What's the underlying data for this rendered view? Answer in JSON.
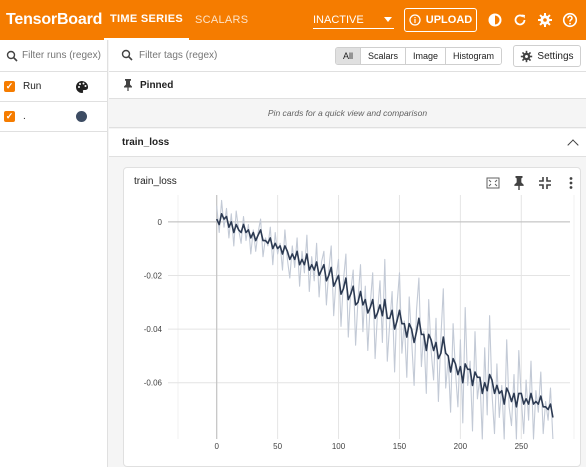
{
  "app": {
    "title": "TensorBoard"
  },
  "tabs": [
    {
      "label": "TIME SERIES",
      "active": true
    },
    {
      "label": "SCALARS",
      "active": false
    }
  ],
  "run_select": {
    "value": "INACTIVE"
  },
  "upload": {
    "label": "UPLOAD"
  },
  "top_icons": [
    "theme-icon",
    "refresh-icon",
    "settings-gear-icon",
    "help-icon"
  ],
  "sidebar": {
    "filter_placeholder": "Filter runs (regex)",
    "runs": [
      {
        "label": "Run",
        "checked": true,
        "icon": "palette-icon"
      },
      {
        "label": ".",
        "checked": true,
        "color": "#3d4c63"
      }
    ]
  },
  "toolbar": {
    "tag_filter_placeholder": "Filter tags (regex)",
    "segments": [
      "All",
      "Scalars",
      "Image",
      "Histogram"
    ],
    "selected_segment": "All",
    "settings_label": "Settings"
  },
  "pinned": {
    "title": "Pinned",
    "empty_message": "Pin cards for a quick view and comparison"
  },
  "group": {
    "title": "train_loss"
  },
  "card": {
    "title": "train_loss"
  },
  "colors": {
    "accent": "#f57c00",
    "series_main": "#2c3a52",
    "series_raw": "#c3cad6"
  },
  "chart_data": {
    "type": "line",
    "title": "train_loss",
    "xlim": [
      -40,
      290
    ],
    "ylim": [
      -0.081,
      0.01
    ],
    "x_ticks": [
      0,
      50,
      100,
      150,
      200,
      250
    ],
    "y_ticks": [
      0,
      -0.02,
      -0.04,
      -0.06
    ],
    "y_tick_labels": [
      "0",
      "-0.02",
      "-0.04",
      "-0.06"
    ],
    "grid": true,
    "series": [
      {
        "role": "raw",
        "x": [
          0,
          2,
          4,
          6,
          8,
          10,
          12,
          14,
          16,
          18,
          20,
          22,
          24,
          26,
          28,
          30,
          32,
          34,
          36,
          38,
          40,
          42,
          44,
          46,
          48,
          50,
          52,
          54,
          56,
          58,
          60,
          62,
          64,
          66,
          68,
          70,
          72,
          74,
          76,
          78,
          80,
          82,
          84,
          86,
          88,
          90,
          92,
          94,
          96,
          98,
          100,
          102,
          104,
          106,
          108,
          110,
          112,
          114,
          116,
          118,
          120,
          122,
          124,
          126,
          128,
          130,
          132,
          134,
          136,
          138,
          140,
          142,
          144,
          146,
          148,
          150,
          152,
          154,
          156,
          158,
          160,
          162,
          164,
          166,
          168,
          170,
          172,
          174,
          176,
          178,
          180,
          182,
          184,
          186,
          188,
          190,
          192,
          194,
          196,
          198,
          200,
          202,
          204,
          206,
          208,
          210,
          212,
          214,
          216,
          218,
          220,
          222,
          224,
          226,
          228,
          230,
          232,
          234,
          236,
          238,
          240,
          242,
          244,
          246,
          248,
          250,
          252,
          254,
          256,
          258,
          260,
          262,
          264,
          266,
          268,
          270,
          272,
          274,
          276
        ],
        "y": [
          0.006,
          -0.004,
          0.008,
          -0.002,
          0.005,
          -0.006,
          0.003,
          -0.009,
          0.004,
          -0.003,
          -0.008,
          0.002,
          -0.007,
          -0.001,
          -0.012,
          -0.003,
          -0.011,
          -0.004,
          0.001,
          -0.013,
          -0.006,
          -0.009,
          -0.002,
          -0.016,
          -0.004,
          -0.012,
          -0.008,
          -0.018,
          -0.003,
          -0.014,
          -0.021,
          -0.009,
          -0.017,
          -0.006,
          -0.024,
          -0.011,
          -0.019,
          -0.005,
          -0.026,
          -0.013,
          -0.022,
          -0.008,
          -0.028,
          -0.015,
          -0.011,
          -0.031,
          -0.018,
          -0.009,
          -0.035,
          -0.021,
          -0.014,
          -0.039,
          -0.022,
          -0.012,
          -0.043,
          -0.026,
          -0.018,
          -0.046,
          -0.029,
          -0.016,
          -0.041,
          -0.024,
          -0.048,
          -0.031,
          -0.019,
          -0.051,
          -0.034,
          -0.022,
          -0.045,
          -0.014,
          -0.052,
          -0.038,
          -0.026,
          -0.056,
          -0.031,
          -0.019,
          -0.049,
          -0.037,
          -0.058,
          -0.028,
          -0.044,
          -0.061,
          -0.033,
          -0.021,
          -0.054,
          -0.041,
          -0.064,
          -0.029,
          -0.048,
          -0.059,
          -0.036,
          -0.067,
          -0.043,
          -0.025,
          -0.062,
          -0.051,
          -0.071,
          -0.038,
          -0.056,
          -0.069,
          -0.044,
          -0.075,
          -0.032,
          -0.061,
          -0.052,
          -0.078,
          -0.041,
          -0.066,
          -0.058,
          -0.081,
          -0.047,
          -0.072,
          -0.035,
          -0.064,
          -0.079,
          -0.053,
          -0.073,
          -0.061,
          -0.081,
          -0.044,
          -0.069,
          -0.076,
          -0.057,
          -0.081,
          -0.048,
          -0.066,
          -0.079,
          -0.059,
          -0.074,
          -0.052,
          -0.081,
          -0.063,
          -0.071,
          -0.056,
          -0.079,
          -0.067,
          -0.074,
          -0.062,
          -0.081
        ]
      },
      {
        "role": "smoothed",
        "x": [
          0,
          2,
          4,
          6,
          8,
          10,
          12,
          14,
          16,
          18,
          20,
          22,
          24,
          26,
          28,
          30,
          32,
          34,
          36,
          38,
          40,
          42,
          44,
          46,
          48,
          50,
          52,
          54,
          56,
          58,
          60,
          62,
          64,
          66,
          68,
          70,
          72,
          74,
          76,
          78,
          80,
          82,
          84,
          86,
          88,
          90,
          92,
          94,
          96,
          98,
          100,
          102,
          104,
          106,
          108,
          110,
          112,
          114,
          116,
          118,
          120,
          122,
          124,
          126,
          128,
          130,
          132,
          134,
          136,
          138,
          140,
          142,
          144,
          146,
          148,
          150,
          152,
          154,
          156,
          158,
          160,
          162,
          164,
          166,
          168,
          170,
          172,
          174,
          176,
          178,
          180,
          182,
          184,
          186,
          188,
          190,
          192,
          194,
          196,
          198,
          200,
          202,
          204,
          206,
          208,
          210,
          212,
          214,
          216,
          218,
          220,
          222,
          224,
          226,
          228,
          230,
          232,
          234,
          236,
          238,
          240,
          242,
          244,
          246,
          248,
          250,
          252,
          254,
          256,
          258,
          260,
          262,
          264,
          266,
          268,
          270,
          272,
          274,
          276
        ],
        "y": [
          0.001,
          -0.001,
          0.003,
          0.001,
          0.002,
          -0.002,
          0.0,
          -0.004,
          -0.001,
          -0.003,
          -0.004,
          -0.001,
          -0.004,
          -0.003,
          -0.006,
          -0.004,
          -0.007,
          -0.005,
          -0.003,
          -0.007,
          -0.007,
          -0.008,
          -0.006,
          -0.01,
          -0.008,
          -0.01,
          -0.009,
          -0.012,
          -0.009,
          -0.011,
          -0.014,
          -0.012,
          -0.014,
          -0.011,
          -0.016,
          -0.014,
          -0.016,
          -0.012,
          -0.018,
          -0.016,
          -0.018,
          -0.015,
          -0.02,
          -0.018,
          -0.016,
          -0.022,
          -0.02,
          -0.017,
          -0.024,
          -0.022,
          -0.02,
          -0.027,
          -0.025,
          -0.021,
          -0.029,
          -0.027,
          -0.024,
          -0.031,
          -0.03,
          -0.026,
          -0.031,
          -0.029,
          -0.034,
          -0.032,
          -0.029,
          -0.036,
          -0.034,
          -0.031,
          -0.035,
          -0.029,
          -0.036,
          -0.036,
          -0.033,
          -0.04,
          -0.037,
          -0.033,
          -0.038,
          -0.038,
          -0.043,
          -0.038,
          -0.04,
          -0.045,
          -0.041,
          -0.036,
          -0.042,
          -0.042,
          -0.048,
          -0.042,
          -0.044,
          -0.048,
          -0.045,
          -0.051,
          -0.049,
          -0.043,
          -0.049,
          -0.05,
          -0.056,
          -0.051,
          -0.053,
          -0.057,
          -0.054,
          -0.06,
          -0.053,
          -0.055,
          -0.055,
          -0.061,
          -0.056,
          -0.058,
          -0.058,
          -0.064,
          -0.06,
          -0.063,
          -0.057,
          -0.059,
          -0.064,
          -0.061,
          -0.064,
          -0.063,
          -0.068,
          -0.062,
          -0.064,
          -0.067,
          -0.064,
          -0.069,
          -0.064,
          -0.064,
          -0.068,
          -0.066,
          -0.068,
          -0.064,
          -0.068,
          -0.067,
          -0.068,
          -0.065,
          -0.069,
          -0.069,
          -0.07,
          -0.068,
          -0.073
        ]
      }
    ]
  }
}
